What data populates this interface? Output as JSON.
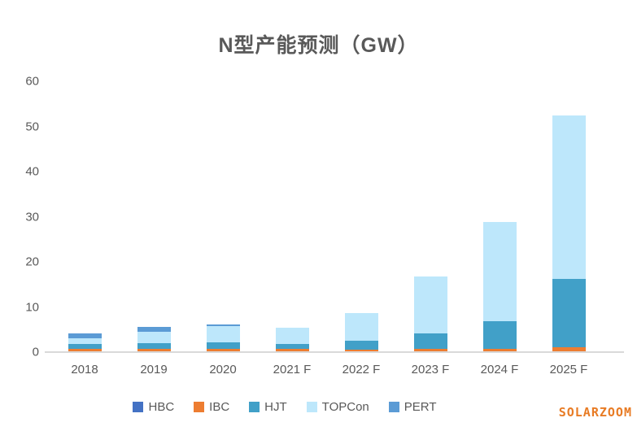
{
  "title": "N型产能预测（GW）",
  "watermark": "SOLARZOOM",
  "axis": {
    "y_tick_color": "#595959",
    "baseline_color": "#d9d9d9"
  },
  "chart_data": {
    "type": "bar",
    "stacked": true,
    "title": "N型产能预测（GW）",
    "xlabel": "",
    "ylabel": "",
    "ylim": [
      0,
      60
    ],
    "yticks": [
      0,
      10,
      20,
      30,
      40,
      50,
      60
    ],
    "grid": false,
    "legend_position": "bottom",
    "categories": [
      "2018",
      "2019",
      "2020",
      "2021 F",
      "2022 F",
      "2023 F",
      "2024 F",
      "2025 F"
    ],
    "series": [
      {
        "name": "HBC",
        "color": "#4472c4",
        "values": [
          0,
          0,
          0,
          0,
          0,
          0,
          0,
          0
        ]
      },
      {
        "name": "IBC",
        "color": "#ed7d31",
        "values": [
          0.8,
          0.7,
          0.7,
          0.7,
          0.6,
          0.7,
          0.7,
          1.0
        ]
      },
      {
        "name": "HJT",
        "color": "#41a0c8",
        "values": [
          1.0,
          1.3,
          1.5,
          1.1,
          2.0,
          3.5,
          6.2,
          15.3
        ]
      },
      {
        "name": "TOPCon",
        "color": "#bde7fb",
        "values": [
          1.3,
          2.5,
          3.5,
          3.6,
          6.0,
          12.5,
          22.0,
          36.2
        ]
      },
      {
        "name": "PERT",
        "color": "#5b9bd5",
        "values": [
          1.1,
          1.1,
          0.4,
          0,
          0,
          0,
          0,
          0
        ]
      }
    ]
  }
}
